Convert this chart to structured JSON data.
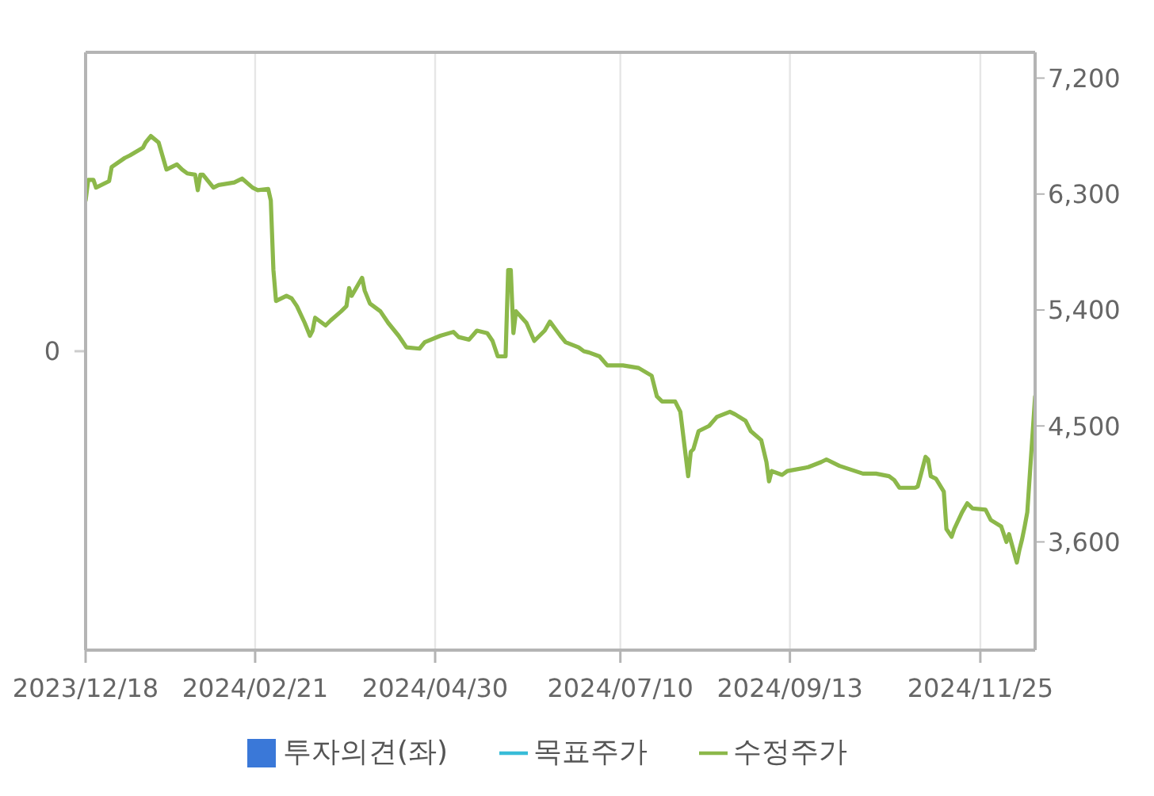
{
  "chart_data": {
    "type": "line",
    "xlim": [
      "2023-12-18",
      "2024-12-16"
    ],
    "xticks": [
      {
        "value": "2023-12-18",
        "label": "2023/12/18"
      },
      {
        "value": "2024-02-21",
        "label": "2024/02/21"
      },
      {
        "value": "2024-04-30",
        "label": "2024/04/30"
      },
      {
        "value": "2024-07-10",
        "label": "2024/07/10"
      },
      {
        "value": "2024-09-13",
        "label": "2024/09/13"
      },
      {
        "value": "2024-11-25",
        "label": "2024/11/25"
      }
    ],
    "y2lim": [
      2760,
      7400
    ],
    "y2ticks": [
      {
        "value": 3600,
        "label": "3,600"
      },
      {
        "value": 4500,
        "label": "4,500"
      },
      {
        "value": 5400,
        "label": "5,400"
      },
      {
        "value": 6300,
        "label": "6,300"
      },
      {
        "value": 7200,
        "label": "7,200"
      }
    ],
    "annotations": [
      "0"
    ],
    "grid": "x",
    "legend": "bottom",
    "series": [
      {
        "name": "투자의견(좌)",
        "type": "bar",
        "color": "#3a78d8"
      },
      {
        "name": "목표주가",
        "color": "#38bcd8",
        "axis": "y2"
      },
      {
        "name": "수정주가",
        "color": "#8cb84a",
        "axis": "y2",
        "x": [
          "2023-12-18",
          "2023-12-19",
          "2023-12-21",
          "2023-12-22",
          "2023-12-27",
          "2023-12-28",
          "2024-01-02",
          "2024-01-04",
          "2024-01-09",
          "2024-01-10",
          "2024-01-12",
          "2024-01-15",
          "2024-01-17",
          "2024-01-18",
          "2024-01-22",
          "2024-01-24",
          "2024-01-26",
          "2024-01-29",
          "2024-01-30",
          "2024-01-31",
          "2024-02-01",
          "2024-02-05",
          "2024-02-07",
          "2024-02-13",
          "2024-02-15",
          "2024-02-16",
          "2024-02-20",
          "2024-02-22",
          "2024-02-26",
          "2024-02-27",
          "2024-02-28",
          "2024-02-29",
          "2024-03-04",
          "2024-03-06",
          "2024-03-08",
          "2024-03-11",
          "2024-03-13",
          "2024-03-14",
          "2024-03-15",
          "2024-03-19",
          "2024-03-21",
          "2024-03-25",
          "2024-03-27",
          "2024-03-28",
          "2024-03-29",
          "2024-04-02",
          "2024-04-03",
          "2024-04-05",
          "2024-04-09",
          "2024-04-12",
          "2024-04-16",
          "2024-04-19",
          "2024-04-24",
          "2024-04-26",
          "2024-05-02",
          "2024-05-07",
          "2024-05-09",
          "2024-05-13",
          "2024-05-16",
          "2024-05-20",
          "2024-05-22",
          "2024-05-24",
          "2024-05-27",
          "2024-05-28",
          "2024-05-29",
          "2024-05-30",
          "2024-05-31",
          "2024-06-04",
          "2024-06-07",
          "2024-06-11",
          "2024-06-13",
          "2024-06-17",
          "2024-06-19",
          "2024-06-24",
          "2024-06-26",
          "2024-06-28",
          "2024-07-02",
          "2024-07-05",
          "2024-07-11",
          "2024-07-17",
          "2024-07-22",
          "2024-07-24",
          "2024-07-26",
          "2024-07-31",
          "2024-08-02",
          "2024-08-05",
          "2024-08-06",
          "2024-08-07",
          "2024-08-09",
          "2024-08-13",
          "2024-08-16",
          "2024-08-21",
          "2024-08-23",
          "2024-08-27",
          "2024-08-29",
          "2024-09-02",
          "2024-09-04",
          "2024-09-05",
          "2024-09-06",
          "2024-09-10",
          "2024-09-12",
          "2024-09-20",
          "2024-09-25",
          "2024-09-27",
          "2024-10-02",
          "2024-10-08",
          "2024-10-11",
          "2024-10-16",
          "2024-10-21",
          "2024-10-23",
          "2024-10-25",
          "2024-10-31",
          "2024-11-01",
          "2024-11-04",
          "2024-11-05",
          "2024-11-06",
          "2024-11-08",
          "2024-11-11",
          "2024-11-12",
          "2024-11-14",
          "2024-11-15",
          "2024-11-18",
          "2024-11-20",
          "2024-11-22",
          "2024-11-27",
          "2024-11-29",
          "2024-12-03",
          "2024-12-05",
          "2024-12-06",
          "2024-12-09",
          "2024-12-10",
          "2024-12-11",
          "2024-12-12",
          "2024-12-13",
          "2024-12-16"
        ],
        "values": [
          6250,
          6410,
          6410,
          6350,
          6400,
          6510,
          6580,
          6600,
          6660,
          6700,
          6750,
          6700,
          6560,
          6490,
          6530,
          6490,
          6460,
          6450,
          6330,
          6450,
          6450,
          6350,
          6370,
          6390,
          6410,
          6420,
          6350,
          6330,
          6340,
          6250,
          5710,
          5470,
          5510,
          5490,
          5430,
          5300,
          5200,
          5240,
          5340,
          5280,
          5320,
          5390,
          5430,
          5570,
          5510,
          5650,
          5550,
          5450,
          5390,
          5300,
          5200,
          5110,
          5100,
          5150,
          5200,
          5230,
          5190,
          5170,
          5240,
          5220,
          5160,
          5040,
          5040,
          5710,
          5710,
          5220,
          5390,
          5300,
          5160,
          5240,
          5310,
          5200,
          5150,
          5110,
          5080,
          5070,
          5040,
          4970,
          4970,
          4950,
          4890,
          4730,
          4690,
          4690,
          4610,
          4110,
          4300,
          4320,
          4460,
          4500,
          4570,
          4610,
          4590,
          4540,
          4460,
          4390,
          4220,
          4070,
          4150,
          4120,
          4150,
          4180,
          4220,
          4240,
          4190,
          4150,
          4130,
          4130,
          4110,
          4080,
          4020,
          4020,
          4030,
          4260,
          4240,
          4110,
          4090,
          3990,
          3700,
          3640,
          3700,
          3830,
          3900,
          3860,
          3850,
          3770,
          3720,
          3600,
          3660,
          3440,
          3540,
          3620,
          3720,
          3830,
          4730
        ]
      }
    ]
  }
}
